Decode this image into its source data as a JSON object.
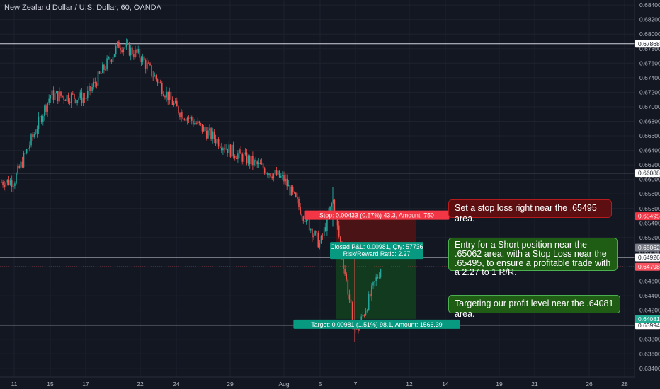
{
  "chart_title": "New Zealand Dollar / U.S. Dollar, 60, OANDA",
  "notes": {
    "stop_note": "Set a stop loss right near the .65495 area.",
    "entry_note": "Entry for a Short position near the .65062 area, with a Stop Loss near the .65495, to ensure a profitable trade with a 2.27 to 1 R/R.",
    "target_note": "Targeting our profit level near the .64081 area."
  },
  "colors": {
    "background": "#131722",
    "grid": "#1e222d",
    "up": "#26a69a",
    "down": "#ef5350",
    "text": "#b2b5be",
    "line": "#d1d4dc",
    "stop_zone": "#4a1316",
    "target_zone": "#123a1e"
  },
  "chart_data": {
    "type": "candlestick",
    "title": "New Zealand Dollar / U.S. Dollar, 60, OANDA",
    "ylim": [
      0.6334,
      0.6844
    ],
    "y_ticks": [
      "0.68400",
      "0.68200",
      "0.68000",
      "0.67800",
      "0.67600",
      "0.67400",
      "0.67200",
      "0.67000",
      "0.66800",
      "0.66600",
      "0.66400",
      "0.66200",
      "0.66000",
      "0.65800",
      "0.65600",
      "0.65400",
      "0.65200",
      "0.65000",
      "0.64800",
      "0.64600",
      "0.64400",
      "0.64200",
      "0.64000",
      "0.63800",
      "0.63600",
      "0.63400"
    ],
    "x_ticks": [
      "11",
      "15",
      "17",
      "22",
      "24",
      "29",
      "Aug",
      "5",
      "7",
      "12",
      "14",
      "19",
      "21",
      "26",
      "28"
    ],
    "horizontal_lines": [
      {
        "price": 0.67868,
        "label": "0.67868"
      },
      {
        "price": 0.66088,
        "label": "0.66088"
      },
      {
        "price": 0.64926,
        "label": "0.64926"
      },
      {
        "price": 0.63994,
        "label": "0.63994"
      }
    ],
    "price_markers": [
      {
        "price": 0.65495,
        "label": "0.65495",
        "color": "#f23645"
      },
      {
        "price": 0.65062,
        "label": "0.65062",
        "color": "#787b86"
      },
      {
        "price": 0.64798,
        "label": "0.64798",
        "color": "#f7525f"
      },
      {
        "price": 0.64081,
        "label": "0.64081",
        "color": "#22ab94"
      }
    ],
    "current_price": 0.64798,
    "position": {
      "entry": 0.65062,
      "stop": 0.65495,
      "target": 0.64081,
      "stop_label": "Stop: 0.00433 (0.67%) 43.3, Amount: 750",
      "closed_label": "Closed P&L: 0.00981, Qty: 57736",
      "ratio_label": "Risk/Reward Ratio: 2.27",
      "target_label": "Target: 0.00981 (1.51%) 98.1, Amount: 1566.39"
    },
    "price_path": [
      {
        "x": "11",
        "price": 0.6598
      },
      {
        "x": "15",
        "price": 0.6716
      },
      {
        "x": "17",
        "price": 0.6712
      },
      {
        "x": "~19",
        "price": 0.6786
      },
      {
        "x": "22",
        "price": 0.677
      },
      {
        "x": "24",
        "price": 0.6698
      },
      {
        "x": "29",
        "price": 0.664
      },
      {
        "x": "Aug",
        "price": 0.66
      },
      {
        "x": "5",
        "price": 0.651
      },
      {
        "x": "~6",
        "price": 0.6572
      },
      {
        "x": "7",
        "price": 0.6385
      },
      {
        "x": "~8",
        "price": 0.648
      }
    ]
  }
}
